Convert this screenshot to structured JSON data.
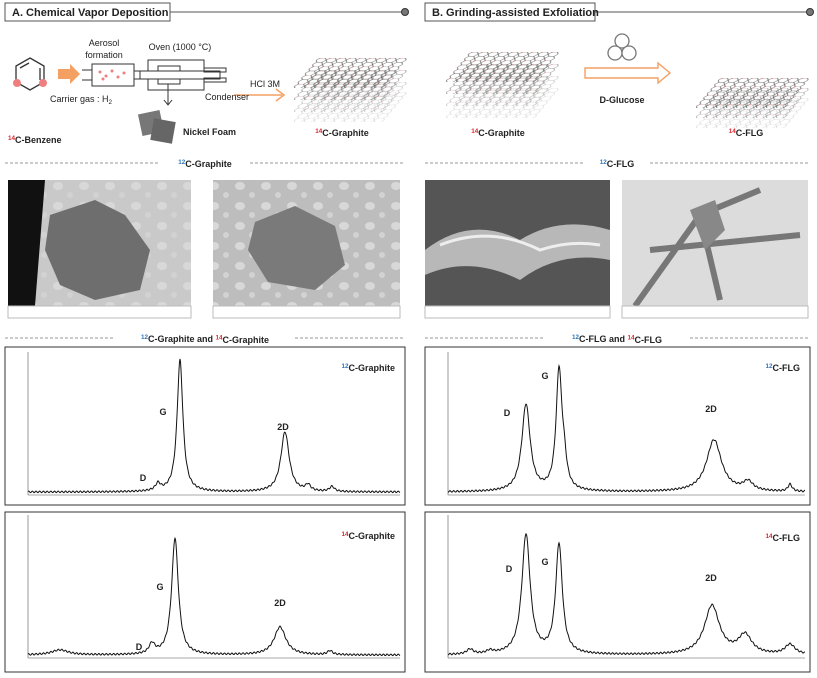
{
  "panel_a": {
    "title": "A. Chemical Vapor Deposition",
    "aerosol": [
      "Aerosol",
      "formation"
    ],
    "oven": "Oven (1000 °C)",
    "carrier_gas": {
      "text": "Carrier gas : H",
      "sub": "2"
    },
    "condenser": "Condenser",
    "acid": "HCl 3M",
    "nickel_foam": "Nickel Foam",
    "precursor": {
      "iso": "14",
      "color": "#d9262c",
      "rest": "C-Benzene"
    },
    "product": {
      "iso": "14",
      "color": "#d9262c",
      "rest": "C-Graphite"
    },
    "sem_title": {
      "iso": "12",
      "color": "#2e75b6",
      "rest": "C-Graphite"
    },
    "raman_title": {
      "parts": [
        {
          "iso": "12",
          "color": "#2e75b6",
          "rest": "C-Graphite and "
        },
        {
          "iso": "14",
          "color": "#d9262c",
          "rest": "C-Graphite"
        }
      ]
    },
    "charts": [
      {
        "label": {
          "iso": "12",
          "color": "#2e75b6",
          "rest": "C-Graphite"
        },
        "peaks": [
          "D",
          "G",
          "2D"
        ]
      },
      {
        "label": {
          "iso": "14",
          "color": "#d9262c",
          "rest": "C-Graphite"
        },
        "peaks": [
          "D",
          "G",
          "2D"
        ]
      }
    ]
  },
  "panel_b": {
    "title": "B. Grinding-assisted  Exfoliation",
    "reagent": "D-Glucose",
    "start": {
      "iso": "14",
      "color": "#d9262c",
      "rest": "C-Graphite"
    },
    "product": {
      "iso": "14",
      "color": "#d9262c",
      "rest": "C-FLG"
    },
    "sem_title": {
      "iso": "12",
      "color": "#2e75b6",
      "rest": "C-FLG"
    },
    "raman_title": {
      "parts": [
        {
          "iso": "12",
          "color": "#2e75b6",
          "rest": "C-FLG and "
        },
        {
          "iso": "14",
          "color": "#d9262c",
          "rest": "C-FLG"
        }
      ]
    },
    "charts": [
      {
        "label": {
          "iso": "12",
          "color": "#2e75b6",
          "rest": "C-FLG"
        },
        "peaks": [
          "D",
          "G",
          "2D"
        ]
      },
      {
        "label": {
          "iso": "14",
          "color": "#d9262c",
          "rest": "C-FLG"
        },
        "peaks": [
          "D",
          "G",
          "2D"
        ]
      }
    ]
  }
}
